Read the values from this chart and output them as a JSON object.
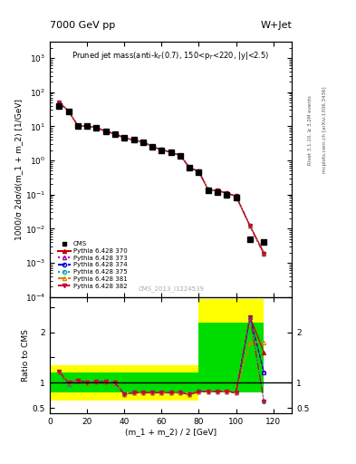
{
  "title_top": "7000 GeV pp",
  "title_top_right": "W+Jet",
  "plot_title": "Pruned jet mass(anti-k$_T$(0.7), 150<p$_T$<220, |y|<2.5)",
  "xlabel": "(m_1 + m_2) / 2 [GeV]",
  "ylabel_main": "1000/σ 2dσ/d(m_1 + m_2) [1/GeV]",
  "ylabel_ratio": "Ratio to CMS",
  "watermark": "CMS_2013_I1224539",
  "right_label1": "Rivet 3.1.10, ≥ 3.2M events",
  "right_label2": "mcplots.cern.ch [arXiv:1306.3436]",
  "cms_x": [
    5,
    10,
    15,
    20,
    25,
    30,
    35,
    40,
    45,
    50,
    55,
    60,
    65,
    70,
    75,
    80,
    85,
    90,
    95,
    100,
    107.5,
    115
  ],
  "cms_y": [
    40,
    28,
    10,
    10,
    9,
    7,
    6,
    4.5,
    4,
    3.5,
    2.5,
    2.0,
    1.7,
    1.4,
    0.6,
    0.45,
    0.13,
    0.12,
    0.1,
    0.08,
    0.005,
    0.004
  ],
  "mc_x": [
    5,
    10,
    15,
    20,
    25,
    30,
    35,
    40,
    45,
    50,
    55,
    60,
    65,
    70,
    75,
    80,
    85,
    90,
    95,
    100,
    107.5,
    115
  ],
  "py370_y": [
    50,
    28,
    10.5,
    10,
    9.2,
    7.1,
    6.0,
    4.6,
    4.0,
    3.5,
    2.55,
    2.05,
    1.75,
    1.4,
    0.62,
    0.48,
    0.14,
    0.13,
    0.11,
    0.09,
    0.012,
    0.002
  ],
  "py373_y": [
    50,
    28,
    10.5,
    10,
    9.2,
    7.1,
    6.0,
    4.6,
    4.0,
    3.5,
    2.55,
    2.05,
    1.75,
    1.4,
    0.62,
    0.47,
    0.14,
    0.13,
    0.11,
    0.09,
    0.012,
    0.0018
  ],
  "py374_y": [
    50,
    28,
    10.5,
    10,
    9.2,
    7.1,
    6.0,
    4.6,
    4.0,
    3.5,
    2.55,
    2.05,
    1.75,
    1.4,
    0.62,
    0.47,
    0.14,
    0.13,
    0.11,
    0.09,
    0.012,
    0.0018
  ],
  "py375_y": [
    50,
    28,
    10.5,
    10,
    9.2,
    7.1,
    6.0,
    4.6,
    4.0,
    3.5,
    2.55,
    2.05,
    1.75,
    1.4,
    0.62,
    0.47,
    0.14,
    0.13,
    0.11,
    0.09,
    0.012,
    0.0018
  ],
  "py381_y": [
    50,
    28,
    10.5,
    10,
    9.2,
    7.1,
    6.0,
    4.6,
    4.0,
    3.5,
    2.55,
    2.05,
    1.75,
    1.4,
    0.62,
    0.47,
    0.14,
    0.13,
    0.11,
    0.09,
    0.012,
    0.002
  ],
  "py382_y": [
    50,
    28,
    10.5,
    10,
    9.2,
    7.1,
    6.0,
    4.6,
    4.0,
    3.5,
    2.55,
    2.05,
    1.75,
    1.4,
    0.62,
    0.47,
    0.14,
    0.13,
    0.11,
    0.09,
    0.012,
    0.0018
  ],
  "ratio_x": [
    5,
    10,
    15,
    20,
    25,
    30,
    35,
    40,
    45,
    50,
    55,
    60,
    65,
    70,
    75,
    80,
    85,
    90,
    95,
    100,
    107.5,
    115
  ],
  "ratio370": [
    1.22,
    1.0,
    1.05,
    1.0,
    1.02,
    1.02,
    1.0,
    0.77,
    0.8,
    0.8,
    0.8,
    0.8,
    0.8,
    0.8,
    0.77,
    0.82,
    0.83,
    0.82,
    0.83,
    0.8,
    2.3,
    1.6
  ],
  "ratio373": [
    1.22,
    1.0,
    1.05,
    1.0,
    1.02,
    1.02,
    1.0,
    0.77,
    0.8,
    0.8,
    0.8,
    0.8,
    0.8,
    0.8,
    0.77,
    0.82,
    0.83,
    0.82,
    0.83,
    0.8,
    2.3,
    1.2
  ],
  "ratio374": [
    1.22,
    0.97,
    1.05,
    1.0,
    1.02,
    1.02,
    1.0,
    0.77,
    0.8,
    0.8,
    0.8,
    0.8,
    0.8,
    0.8,
    0.77,
    0.82,
    0.83,
    0.82,
    0.83,
    0.8,
    2.3,
    1.2
  ],
  "ratio375": [
    1.22,
    0.97,
    1.05,
    1.0,
    1.02,
    1.02,
    1.0,
    0.77,
    0.8,
    0.8,
    0.8,
    0.8,
    0.8,
    0.8,
    0.77,
    0.82,
    0.83,
    0.82,
    0.83,
    0.8,
    2.3,
    0.62
  ],
  "ratio381": [
    1.22,
    1.0,
    1.05,
    1.0,
    1.02,
    1.02,
    1.0,
    0.77,
    0.8,
    0.8,
    0.8,
    0.8,
    0.8,
    0.8,
    0.77,
    0.82,
    0.83,
    0.82,
    0.83,
    0.8,
    1.8,
    1.8
  ],
  "ratio382": [
    1.22,
    1.0,
    1.05,
    1.0,
    1.02,
    1.02,
    1.0,
    0.77,
    0.8,
    0.8,
    0.8,
    0.8,
    0.8,
    0.8,
    0.77,
    0.82,
    0.83,
    0.82,
    0.83,
    0.8,
    2.3,
    0.62
  ],
  "colors": {
    "py370": "#cc0000",
    "py373": "#aa00aa",
    "py374": "#0000cc",
    "py375": "#00aaaa",
    "py381": "#cc8800",
    "py382": "#cc0033"
  },
  "ylim_main": [
    0.0001,
    3000
  ],
  "ylim_ratio": [
    0.4,
    2.7
  ],
  "xlim": [
    0,
    130
  ]
}
